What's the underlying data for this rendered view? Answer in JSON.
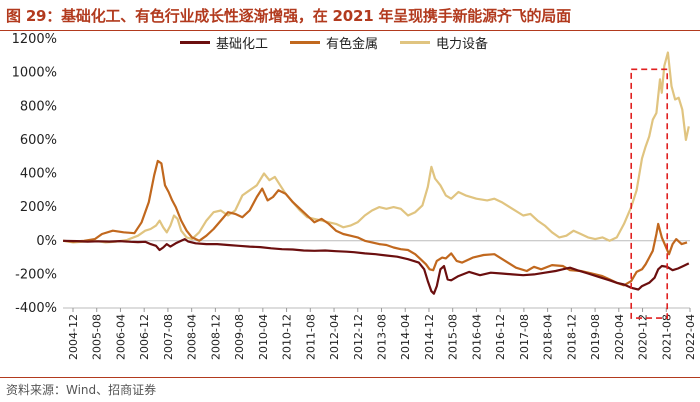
{
  "header": {
    "title": "图 29：基础化工、有色行业成长性逐渐增强，在 2021 年呈现携手新能源齐飞的局面"
  },
  "footer": {
    "source": "资料来源：Wind、招商证券"
  },
  "chart_data": {
    "type": "line",
    "ylim": [
      -400,
      1200
    ],
    "yticks": [
      -400,
      -200,
      0,
      200,
      400,
      600,
      800,
      1000,
      1200
    ],
    "ytick_labels": [
      "-400%",
      "-200%",
      "0%",
      "200%",
      "400%",
      "600%",
      "800%",
      "1000%",
      "1200%"
    ],
    "xlim": [
      2004.917,
      2022.333
    ],
    "xtick_labels": [
      "2004-12",
      "2005-08",
      "2006-04",
      "2006-12",
      "2007-08",
      "2008-04",
      "2008-12",
      "2009-08",
      "2010-04",
      "2010-12",
      "2011-08",
      "2012-04",
      "2012-12",
      "2013-08",
      "2014-04",
      "2014-12",
      "2015-08",
      "2016-04",
      "2016-12",
      "2017-08",
      "2018-04",
      "2018-12",
      "2019-08",
      "2020-04",
      "2020-12",
      "2021-08",
      "2022-04"
    ],
    "legend_position": "top",
    "grid": false,
    "highlight_box": {
      "x_range": [
        2020.7,
        2021.7
      ],
      "y_range": [
        -460,
        1020
      ],
      "style": "dashed",
      "color": "#e02020"
    },
    "series": [
      {
        "name": "基础化工",
        "color": "#6b0f0f",
        "points": [
          [
            2004.92,
            0
          ],
          [
            2005.3,
            -2
          ],
          [
            2005.6,
            -5
          ],
          [
            2005.9,
            -3
          ],
          [
            2006.2,
            -5
          ],
          [
            2006.5,
            -2
          ],
          [
            2006.8,
            -6
          ],
          [
            2007.0,
            -8
          ],
          [
            2007.2,
            -6
          ],
          [
            2007.35,
            -20
          ],
          [
            2007.5,
            -30
          ],
          [
            2007.6,
            -55
          ],
          [
            2007.7,
            -40
          ],
          [
            2007.8,
            -20
          ],
          [
            2007.9,
            -35
          ],
          [
            2008.05,
            -15
          ],
          [
            2008.2,
            0
          ],
          [
            2008.3,
            10
          ],
          [
            2008.4,
            -5
          ],
          [
            2008.6,
            -15
          ],
          [
            2008.9,
            -20
          ],
          [
            2009.2,
            -20
          ],
          [
            2009.5,
            -25
          ],
          [
            2009.8,
            -30
          ],
          [
            2010.1,
            -35
          ],
          [
            2010.4,
            -38
          ],
          [
            2010.7,
            -45
          ],
          [
            2011.0,
            -50
          ],
          [
            2011.3,
            -52
          ],
          [
            2011.6,
            -58
          ],
          [
            2011.9,
            -60
          ],
          [
            2012.2,
            -58
          ],
          [
            2012.5,
            -62
          ],
          [
            2012.8,
            -65
          ],
          [
            2013.0,
            -68
          ],
          [
            2013.3,
            -75
          ],
          [
            2013.6,
            -80
          ],
          [
            2013.9,
            -88
          ],
          [
            2014.2,
            -95
          ],
          [
            2014.5,
            -110
          ],
          [
            2014.8,
            -130
          ],
          [
            2014.95,
            -170
          ],
          [
            2015.05,
            -240
          ],
          [
            2015.15,
            -300
          ],
          [
            2015.22,
            -315
          ],
          [
            2015.3,
            -270
          ],
          [
            2015.4,
            -170
          ],
          [
            2015.5,
            -150
          ],
          [
            2015.6,
            -230
          ],
          [
            2015.7,
            -235
          ],
          [
            2015.9,
            -210
          ],
          [
            2016.2,
            -185
          ],
          [
            2016.5,
            -205
          ],
          [
            2016.8,
            -190
          ],
          [
            2017.1,
            -195
          ],
          [
            2017.4,
            -200
          ],
          [
            2017.7,
            -205
          ],
          [
            2018.0,
            -200
          ],
          [
            2018.3,
            -190
          ],
          [
            2018.6,
            -180
          ],
          [
            2018.8,
            -170
          ],
          [
            2019.0,
            -160
          ],
          [
            2019.2,
            -175
          ],
          [
            2019.5,
            -195
          ],
          [
            2019.8,
            -215
          ],
          [
            2020.1,
            -235
          ],
          [
            2020.3,
            -250
          ],
          [
            2020.5,
            -260
          ],
          [
            2020.7,
            -280
          ],
          [
            2020.9,
            -290
          ],
          [
            2021.0,
            -270
          ],
          [
            2021.2,
            -250
          ],
          [
            2021.35,
            -220
          ],
          [
            2021.45,
            -170
          ],
          [
            2021.55,
            -150
          ],
          [
            2021.7,
            -155
          ],
          [
            2021.85,
            -175
          ],
          [
            2022.0,
            -165
          ],
          [
            2022.15,
            -150
          ],
          [
            2022.3,
            -135
          ]
        ]
      },
      {
        "name": "有色金属",
        "color": "#c1681e",
        "points": [
          [
            2004.92,
            0
          ],
          [
            2005.2,
            -5
          ],
          [
            2005.5,
            0
          ],
          [
            2005.8,
            10
          ],
          [
            2006.0,
            40
          ],
          [
            2006.3,
            60
          ],
          [
            2006.6,
            50
          ],
          [
            2006.9,
            45
          ],
          [
            2007.1,
            110
          ],
          [
            2007.3,
            230
          ],
          [
            2007.45,
            390
          ],
          [
            2007.55,
            475
          ],
          [
            2007.65,
            460
          ],
          [
            2007.75,
            330
          ],
          [
            2007.85,
            290
          ],
          [
            2007.95,
            240
          ],
          [
            2008.05,
            200
          ],
          [
            2008.2,
            120
          ],
          [
            2008.35,
            60
          ],
          [
            2008.5,
            20
          ],
          [
            2008.7,
            0
          ],
          [
            2008.9,
            30
          ],
          [
            2009.1,
            70
          ],
          [
            2009.3,
            120
          ],
          [
            2009.5,
            170
          ],
          [
            2009.7,
            160
          ],
          [
            2009.9,
            140
          ],
          [
            2010.1,
            180
          ],
          [
            2010.3,
            260
          ],
          [
            2010.45,
            310
          ],
          [
            2010.6,
            240
          ],
          [
            2010.75,
            260
          ],
          [
            2010.9,
            300
          ],
          [
            2011.1,
            280
          ],
          [
            2011.3,
            230
          ],
          [
            2011.5,
            190
          ],
          [
            2011.7,
            150
          ],
          [
            2011.9,
            110
          ],
          [
            2012.1,
            130
          ],
          [
            2012.3,
            100
          ],
          [
            2012.5,
            60
          ],
          [
            2012.7,
            40
          ],
          [
            2012.9,
            30
          ],
          [
            2013.1,
            20
          ],
          [
            2013.3,
            0
          ],
          [
            2013.5,
            -10
          ],
          [
            2013.7,
            -20
          ],
          [
            2013.9,
            -25
          ],
          [
            2014.1,
            -40
          ],
          [
            2014.3,
            -50
          ],
          [
            2014.5,
            -55
          ],
          [
            2014.7,
            -80
          ],
          [
            2014.85,
            -110
          ],
          [
            2015.0,
            -140
          ],
          [
            2015.1,
            -170
          ],
          [
            2015.2,
            -175
          ],
          [
            2015.3,
            -120
          ],
          [
            2015.45,
            -100
          ],
          [
            2015.55,
            -105
          ],
          [
            2015.7,
            -75
          ],
          [
            2015.85,
            -120
          ],
          [
            2016.0,
            -130
          ],
          [
            2016.3,
            -100
          ],
          [
            2016.6,
            -85
          ],
          [
            2016.9,
            -80
          ],
          [
            2017.2,
            -120
          ],
          [
            2017.5,
            -160
          ],
          [
            2017.8,
            -180
          ],
          [
            2018.0,
            -155
          ],
          [
            2018.2,
            -170
          ],
          [
            2018.5,
            -145
          ],
          [
            2018.8,
            -150
          ],
          [
            2019.0,
            -175
          ],
          [
            2019.3,
            -180
          ],
          [
            2019.6,
            -195
          ],
          [
            2019.9,
            -210
          ],
          [
            2020.1,
            -230
          ],
          [
            2020.3,
            -250
          ],
          [
            2020.5,
            -265
          ],
          [
            2020.7,
            -240
          ],
          [
            2020.85,
            -185
          ],
          [
            2021.0,
            -170
          ],
          [
            2021.1,
            -140
          ],
          [
            2021.2,
            -100
          ],
          [
            2021.3,
            -60
          ],
          [
            2021.4,
            40
          ],
          [
            2021.45,
            100
          ],
          [
            2021.55,
            20
          ],
          [
            2021.65,
            -30
          ],
          [
            2021.75,
            -80
          ],
          [
            2021.85,
            -20
          ],
          [
            2021.95,
            10
          ],
          [
            2022.1,
            -20
          ],
          [
            2022.25,
            -10
          ]
        ]
      },
      {
        "name": "电力设备",
        "color": "#e0c480",
        "points": [
          [
            2004.92,
            0
          ],
          [
            2005.2,
            -10
          ],
          [
            2005.5,
            -5
          ],
          [
            2005.8,
            0
          ],
          [
            2006.1,
            -10
          ],
          [
            2006.4,
            -5
          ],
          [
            2006.7,
            5
          ],
          [
            2007.0,
            30
          ],
          [
            2007.2,
            60
          ],
          [
            2007.35,
            70
          ],
          [
            2007.5,
            90
          ],
          [
            2007.6,
            120
          ],
          [
            2007.7,
            80
          ],
          [
            2007.8,
            50
          ],
          [
            2007.9,
            90
          ],
          [
            2008.0,
            150
          ],
          [
            2008.1,
            130
          ],
          [
            2008.2,
            60
          ],
          [
            2008.35,
            20
          ],
          [
            2008.5,
            10
          ],
          [
            2008.7,
            50
          ],
          [
            2008.9,
            120
          ],
          [
            2009.1,
            170
          ],
          [
            2009.3,
            180
          ],
          [
            2009.5,
            150
          ],
          [
            2009.7,
            180
          ],
          [
            2009.9,
            270
          ],
          [
            2010.1,
            300
          ],
          [
            2010.3,
            330
          ],
          [
            2010.5,
            400
          ],
          [
            2010.65,
            360
          ],
          [
            2010.8,
            380
          ],
          [
            2010.95,
            330
          ],
          [
            2011.1,
            280
          ],
          [
            2011.3,
            230
          ],
          [
            2011.5,
            180
          ],
          [
            2011.7,
            140
          ],
          [
            2011.9,
            130
          ],
          [
            2012.1,
            120
          ],
          [
            2012.3,
            110
          ],
          [
            2012.5,
            100
          ],
          [
            2012.7,
            80
          ],
          [
            2012.9,
            90
          ],
          [
            2013.1,
            110
          ],
          [
            2013.3,
            150
          ],
          [
            2013.5,
            180
          ],
          [
            2013.7,
            200
          ],
          [
            2013.9,
            190
          ],
          [
            2014.1,
            200
          ],
          [
            2014.3,
            190
          ],
          [
            2014.5,
            150
          ],
          [
            2014.7,
            170
          ],
          [
            2014.9,
            210
          ],
          [
            2015.05,
            320
          ],
          [
            2015.15,
            440
          ],
          [
            2015.25,
            370
          ],
          [
            2015.4,
            330
          ],
          [
            2015.55,
            270
          ],
          [
            2015.7,
            250
          ],
          [
            2015.9,
            290
          ],
          [
            2016.1,
            270
          ],
          [
            2016.4,
            250
          ],
          [
            2016.7,
            240
          ],
          [
            2016.9,
            250
          ],
          [
            2017.1,
            230
          ],
          [
            2017.4,
            190
          ],
          [
            2017.7,
            150
          ],
          [
            2017.9,
            160
          ],
          [
            2018.1,
            120
          ],
          [
            2018.3,
            90
          ],
          [
            2018.5,
            50
          ],
          [
            2018.7,
            20
          ],
          [
            2018.9,
            30
          ],
          [
            2019.1,
            60
          ],
          [
            2019.3,
            40
          ],
          [
            2019.5,
            20
          ],
          [
            2019.7,
            10
          ],
          [
            2019.9,
            20
          ],
          [
            2020.1,
            0
          ],
          [
            2020.3,
            20
          ],
          [
            2020.5,
            100
          ],
          [
            2020.7,
            200
          ],
          [
            2020.85,
            300
          ],
          [
            2021.0,
            490
          ],
          [
            2021.1,
            560
          ],
          [
            2021.2,
            620
          ],
          [
            2021.3,
            720
          ],
          [
            2021.4,
            760
          ],
          [
            2021.5,
            960
          ],
          [
            2021.55,
            880
          ],
          [
            2021.62,
            1040
          ],
          [
            2021.72,
            1120
          ],
          [
            2021.82,
            920
          ],
          [
            2021.92,
            840
          ],
          [
            2022.02,
            850
          ],
          [
            2022.12,
            780
          ],
          [
            2022.22,
            600
          ],
          [
            2022.3,
            680
          ]
        ]
      }
    ]
  }
}
